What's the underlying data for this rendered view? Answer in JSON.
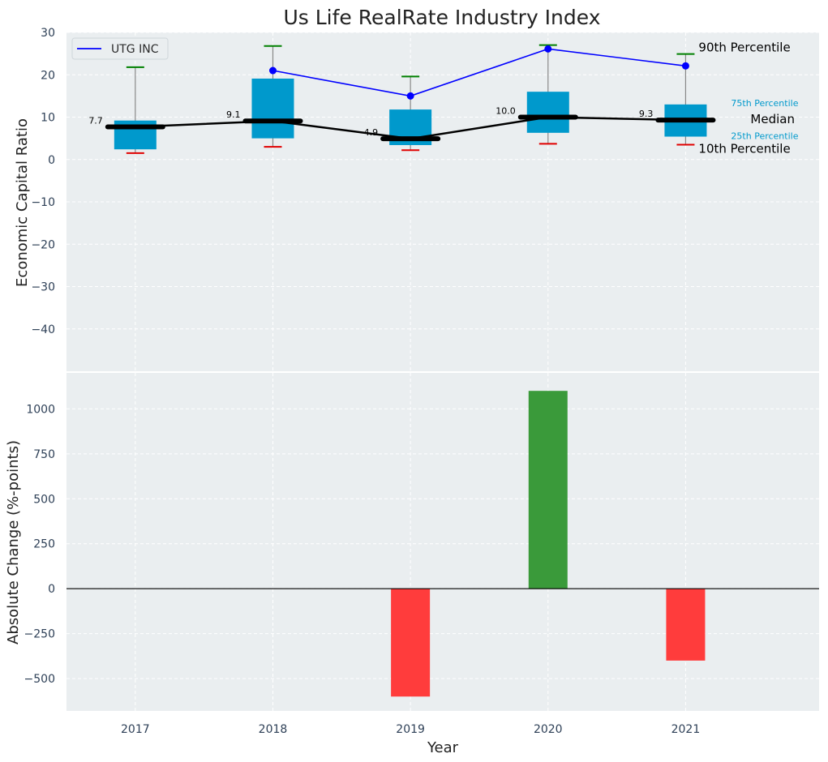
{
  "chart_data": [
    {
      "type": "box",
      "title": "Us Life RealRate Industry Index",
      "xlabel": "",
      "ylabel": "Economic Capital Ratio",
      "ylim": [
        -50,
        30
      ],
      "yticks": [
        -40,
        -30,
        -20,
        -10,
        0,
        10,
        20,
        30
      ],
      "ytick_labels": [
        "−40",
        "−30",
        "−20",
        "−10",
        "0",
        "10",
        "20",
        "30"
      ],
      "grid": true,
      "categories": [
        "2017",
        "2018",
        "2019",
        "2020",
        "2021"
      ],
      "p10": [
        1.5,
        3.0,
        2.2,
        3.7,
        3.5
      ],
      "p25": [
        2.4,
        5.0,
        3.4,
        6.3,
        5.4
      ],
      "median": [
        7.7,
        9.1,
        4.9,
        10.0,
        9.3
      ],
      "median_labels": [
        "7.7",
        "9.1",
        "4.9",
        "10.0",
        "9.3"
      ],
      "p75": [
        9.2,
        19.1,
        11.8,
        16.0,
        13.0
      ],
      "p90": [
        21.8,
        26.8,
        19.6,
        27.0,
        24.9
      ],
      "series": [
        {
          "name": "UTG INC",
          "x": [
            "2018",
            "2019",
            "2020",
            "2021"
          ],
          "values": [
            21.0,
            15.0,
            26.1,
            22.1
          ],
          "color": "#0000ff"
        }
      ],
      "legend": {
        "position": "top-left",
        "entries": [
          "UTG INC"
        ]
      },
      "annotations": {
        "p90": "90th Percentile",
        "p75": "75th Percentile",
        "median": "Median",
        "p25": "25th Percentile",
        "p10": "10th Percentile"
      }
    },
    {
      "type": "bar",
      "xlabel": "Year",
      "ylabel": "Absolute Change (%-points)",
      "ylim": [
        -680,
        1200
      ],
      "yticks": [
        -500,
        -250,
        0,
        250,
        500,
        750,
        1000
      ],
      "ytick_labels": [
        "−500",
        "−250",
        "0",
        "250",
        "500",
        "750",
        "1000"
      ],
      "grid": true,
      "categories": [
        "2017",
        "2018",
        "2019",
        "2020",
        "2021"
      ],
      "values": [
        null,
        null,
        -600,
        1100,
        -400
      ]
    }
  ],
  "colors": {
    "panel_bg": "#eaeef0",
    "box_fill": "#0099cc",
    "median_line": "#000000",
    "whisker": "#888888",
    "p90_cap": "#008000",
    "p10_cap": "#e00000",
    "series_line": "#0000ff",
    "bar_positive": "#3a9a3a",
    "bar_negative": "#ff3c3c",
    "annotation_p75_p25": "#0099cc",
    "tick_text": "#2e4057"
  }
}
